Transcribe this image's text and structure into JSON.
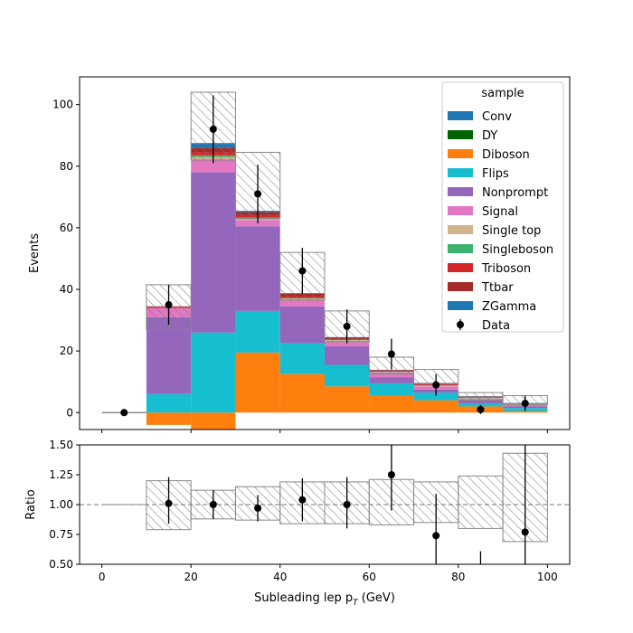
{
  "chart_data": {
    "type": "bar",
    "stacked": true,
    "xlabel": "Subleading lep p",
    "xlabel_subscript": "T",
    "xlabel_unit": " (GeV)",
    "x_bin_edges": [
      0,
      10,
      20,
      30,
      40,
      50,
      60,
      70,
      80,
      90,
      100
    ],
    "xlim": [
      -5,
      105
    ],
    "xticks": [
      0,
      20,
      40,
      60,
      80,
      100
    ],
    "xtick_labels": [
      "0",
      "20",
      "40",
      "60",
      "80",
      "100"
    ],
    "main": {
      "ylabel": "Events",
      "ylim": [
        -5.5,
        109
      ],
      "yticks": [
        0,
        20,
        40,
        60,
        80,
        100
      ],
      "ytick_labels": [
        "0",
        "20",
        "40",
        "60",
        "80",
        "100"
      ]
    },
    "ratio": {
      "ylabel": "Ratio",
      "ylim": [
        0.5,
        1.5
      ],
      "yticks": [
        0.5,
        0.75,
        1.0,
        1.25,
        1.5
      ],
      "ytick_labels": [
        "0.50",
        "0.75",
        "1.00",
        "1.25",
        "1.50"
      ],
      "reference_line": 1.0
    },
    "legend": {
      "title": "sample",
      "placement": "top-right",
      "entries": [
        "Conv",
        "DY",
        "Diboson",
        "Flips",
        "Nonprompt",
        "Signal",
        "Single top",
        "Singleboson",
        "Triboson",
        "Ttbar",
        "ZGamma",
        "Data"
      ]
    },
    "series": [
      {
        "name": "Diboson",
        "color": "#ff7f0e",
        "values": [
          0,
          -4,
          -5.5,
          19.5,
          12.5,
          8.5,
          5.5,
          4,
          2,
          0.5
        ]
      },
      {
        "name": "DY",
        "color": "#006400",
        "values": [
          0,
          0,
          0,
          0,
          0,
          0,
          0,
          0,
          0,
          0
        ]
      },
      {
        "name": "Flips",
        "color": "#17becf",
        "values": [
          0,
          6,
          26,
          13.5,
          10,
          7,
          4,
          2.5,
          1,
          1
        ]
      },
      {
        "name": "Nonprompt",
        "color": "#9467bd",
        "values": [
          0,
          25,
          52,
          27.5,
          12,
          6,
          2,
          1,
          1,
          0.5
        ]
      },
      {
        "name": "Signal",
        "color": "#e377c2",
        "values": [
          0,
          3,
          4,
          2,
          2,
          1.5,
          1.5,
          1,
          0.5,
          0.5
        ]
      },
      {
        "name": "Single top",
        "color": "#d2b48c",
        "values": [
          0,
          0,
          1,
          0.5,
          0.5,
          0.5,
          0.2,
          0.2,
          0.2,
          0.2
        ]
      },
      {
        "name": "Singleboson",
        "color": "#3cb371",
        "values": [
          0,
          0,
          0.5,
          0.3,
          0.2,
          0.2,
          0.1,
          0.1,
          0.1,
          0.1
        ]
      },
      {
        "name": "Triboson",
        "color": "#d62728",
        "values": [
          0,
          0.2,
          1,
          0.8,
          0.6,
          0.3,
          0.3,
          0.3,
          0.2,
          0.1
        ]
      },
      {
        "name": "Ttbar",
        "color": "#a52a2a",
        "values": [
          0,
          0.3,
          1.5,
          1.0,
          0.8,
          0.3,
          0.2,
          0.2,
          0.2,
          0.1
        ]
      },
      {
        "name": "Conv",
        "color": "#1f77b4",
        "values": [
          0,
          0,
          0,
          0,
          0,
          0,
          0,
          0,
          0,
          0
        ]
      },
      {
        "name": "ZGamma",
        "color": "#1f77b4",
        "values": [
          0,
          0,
          1.5,
          0.4,
          0.2,
          0.2,
          0.1,
          0.1,
          0.1,
          0.1
        ]
      }
    ],
    "uncertainty_band": {
      "low": [
        0,
        27,
        82,
        63,
        36.5,
        23,
        12.5,
        9.5,
        4,
        2.5
      ],
      "high": [
        0,
        41.5,
        104,
        84.5,
        52,
        33,
        18,
        14,
        6.5,
        5.5
      ]
    },
    "data": {
      "name": "Data",
      "x": [
        5,
        15,
        25,
        35,
        45,
        55,
        65,
        75,
        85,
        95
      ],
      "y": [
        0,
        35,
        92,
        71,
        46,
        28,
        19,
        9,
        1,
        3
      ],
      "err": [
        0,
        6.5,
        11,
        9.5,
        7.5,
        5.5,
        5,
        3.5,
        1.5,
        2.5
      ]
    },
    "ratio_points": {
      "x": [
        15,
        25,
        35,
        45,
        55,
        65,
        75,
        85,
        95
      ],
      "y": [
        1.01,
        1.0,
        0.97,
        1.04,
        1.0,
        1.25,
        0.74,
        null,
        0.77
      ],
      "err_low": [
        0.17,
        0.12,
        0.11,
        0.18,
        0.2,
        0.3,
        0.4,
        0.5,
        0.5
      ],
      "err_high": [
        0.22,
        0.12,
        0.11,
        0.18,
        0.23,
        0.3,
        0.35,
        0.5,
        0.9
      ],
      "bin85_error_bar": [
        0.5,
        0.61
      ]
    },
    "ratio_band": {
      "low": [
        1.0,
        0.79,
        0.88,
        0.87,
        0.84,
        0.84,
        0.83,
        0.85,
        0.8,
        0.69
      ],
      "high": [
        1.0,
        1.2,
        1.12,
        1.15,
        1.19,
        1.19,
        1.21,
        1.19,
        1.24,
        1.43
      ]
    }
  }
}
